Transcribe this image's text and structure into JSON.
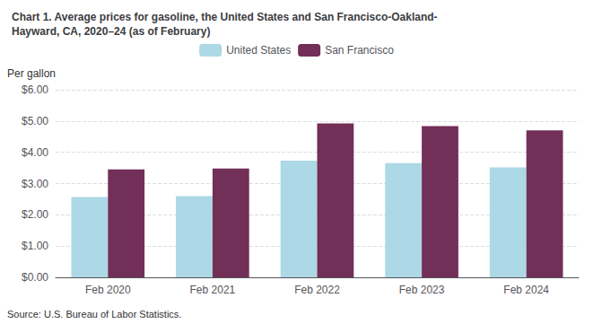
{
  "chart_data": {
    "type": "bar",
    "title": "Chart 1. Average prices for gasoline, the United States and San Francisco-Oakland-\nHayward, CA, 2020–24 (as of February)",
    "ylabel": "Per gallon",
    "source": "Source: U.S. Bureau of Labor Statistics.",
    "categories": [
      "Feb 2020",
      "Feb 2021",
      "Feb 2022",
      "Feb 2023",
      "Feb 2024"
    ],
    "series": [
      {
        "name": "United States",
        "color": "#ADD8E6",
        "values": [
          2.57,
          2.6,
          3.73,
          3.65,
          3.52
        ]
      },
      {
        "name": "San Francisco",
        "color": "#722F57",
        "values": [
          3.45,
          3.48,
          4.92,
          4.84,
          4.7
        ]
      }
    ],
    "ylim": [
      0,
      6.0
    ],
    "yticks": [
      {
        "value": 0.0,
        "label": "$0.00"
      },
      {
        "value": 1.0,
        "label": "$1.00"
      },
      {
        "value": 2.0,
        "label": "$2.00"
      },
      {
        "value": 3.0,
        "label": "$3.00"
      },
      {
        "value": 4.0,
        "label": "$4.00"
      },
      {
        "value": 5.0,
        "label": "$5.00"
      },
      {
        "value": 6.0,
        "label": "$6.00"
      }
    ],
    "grid": true,
    "legend": "top"
  }
}
